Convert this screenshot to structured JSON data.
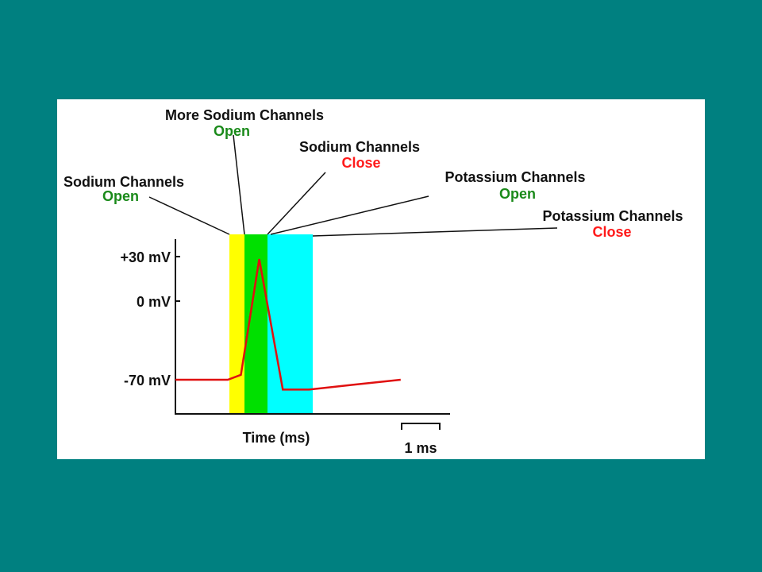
{
  "colors": {
    "background": "#008080",
    "panel": "#ffffff",
    "open": "#1a8a1a",
    "close": "#ff1a1a",
    "trace": "#e01010",
    "band_yellow": "#ffff00",
    "band_green": "#00e000",
    "band_cyan": "#00ffff",
    "axis": "#111111"
  },
  "labels": {
    "sodium_open": {
      "title": "Sodium Channels",
      "state": "Open"
    },
    "more_sodium_open": {
      "title": "More Sodium Channels",
      "state": "Open"
    },
    "sodium_close": {
      "title": "Sodium Channels",
      "state": "Close"
    },
    "potassium_open": {
      "title": "Potassium Channels",
      "state": "Open"
    },
    "potassium_close": {
      "title": "Potassium Channels",
      "state": "Close"
    }
  },
  "axis": {
    "y_ticks": [
      "+30 mV",
      "0 mV",
      "-70 mV"
    ],
    "xlabel": "Time (ms)",
    "scale_bar": "1 ms"
  },
  "chart_data": {
    "type": "line",
    "x_unit": "ms",
    "y_unit": "mV",
    "ytick_values": [
      30,
      0,
      -70
    ],
    "series": [
      {
        "x": [
          0,
          1,
          1.25,
          1.6,
          2.05,
          2.55,
          3.4,
          4.3
        ],
        "y": [
          -70,
          -70,
          -66,
          28,
          -78,
          -78,
          -74,
          -70
        ]
      }
    ]
  }
}
